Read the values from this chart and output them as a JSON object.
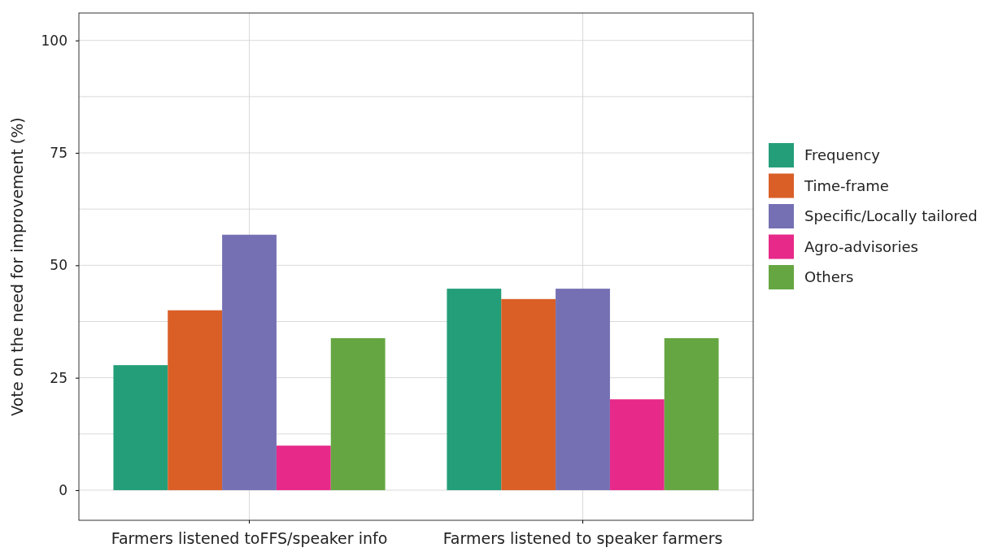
{
  "chart_data": {
    "type": "bar",
    "ylabel": "Vote on the need for improvement (%)",
    "categories": [
      "Farmers listened toFFS/speaker info",
      "Farmers listened to speaker farmers"
    ],
    "series": [
      {
        "name": "Frequency",
        "color": "#239e78",
        "values": [
          27.8,
          44.8
        ]
      },
      {
        "name": "Time-frame",
        "color": "#d95f27",
        "values": [
          40,
          42.5
        ]
      },
      {
        "name": "Specific/Locally tailored",
        "color": "#7570b3",
        "values": [
          56.8,
          44.8
        ]
      },
      {
        "name": "Agro-advisories",
        "color": "#e7298a",
        "values": [
          9.9,
          20.2
        ]
      },
      {
        "name": "Others",
        "color": "#65a642",
        "values": [
          33.8,
          33.8
        ]
      }
    ],
    "ylim": [
      -6.7,
      106.1
    ],
    "yticks": [
      0,
      25,
      50,
      75,
      100
    ],
    "grid": true,
    "legend": "right"
  }
}
